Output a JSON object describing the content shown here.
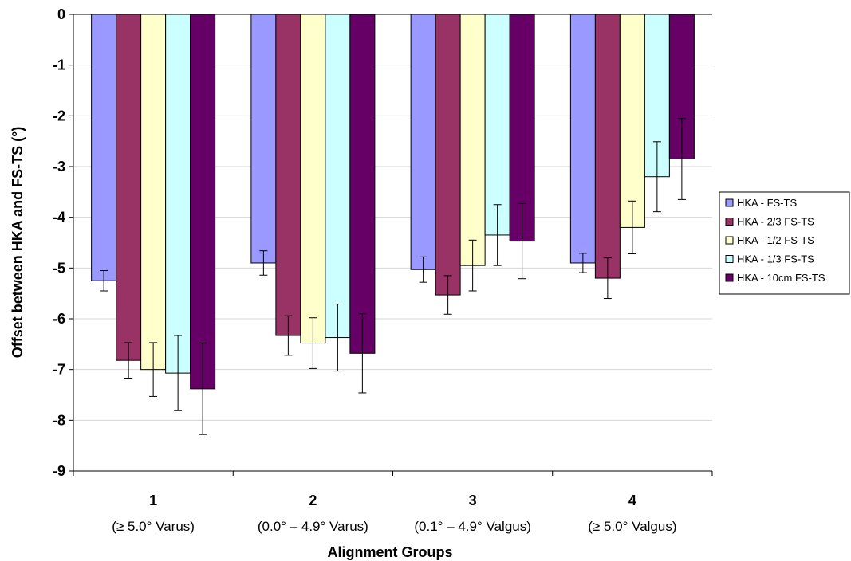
{
  "chart_data": {
    "type": "bar",
    "title": "",
    "xlabel": "Alignment Groups",
    "ylabel": "Offset between HKA and FS-TS (°)",
    "ylim": [
      -9,
      0
    ],
    "yticks": [
      "0",
      "-1",
      "-2",
      "-3",
      "-4",
      "-5",
      "-6",
      "-7",
      "-8",
      "-9"
    ],
    "grid": true,
    "legend_position": "right",
    "categories": [
      "1",
      "2",
      "3",
      "4"
    ],
    "category_sublabels": [
      "(≥ 5.0° Varus)",
      "(0.0° – 4.9° Varus)",
      "(0.1° – 4.9° Valgus)",
      "(≥ 5.0° Valgus)"
    ],
    "series": [
      {
        "name": "HKA - FS-TS",
        "color": "#9999ff",
        "values": [
          -5.25,
          -4.9,
          -5.03,
          -4.9
        ],
        "error": [
          0.2,
          0.24,
          0.25,
          0.19
        ]
      },
      {
        "name": "HKA - 2/3 FS-TS",
        "color": "#993366",
        "values": [
          -6.82,
          -6.33,
          -5.53,
          -5.2
        ],
        "error": [
          0.35,
          0.39,
          0.38,
          0.4
        ]
      },
      {
        "name": "HKA - 1/2 FS-TS",
        "color": "#ffffcc",
        "values": [
          -7.0,
          -6.48,
          -4.95,
          -4.2
        ],
        "error": [
          0.53,
          0.5,
          0.5,
          0.52
        ]
      },
      {
        "name": "HKA - 1/3 FS-TS",
        "color": "#ccffff",
        "values": [
          -7.07,
          -6.37,
          -4.35,
          -3.2
        ],
        "error": [
          0.74,
          0.66,
          0.6,
          0.69
        ]
      },
      {
        "name": "HKA - 10cm FS-TS",
        "color": "#660066",
        "values": [
          -7.38,
          -6.68,
          -4.47,
          -2.85
        ],
        "error": [
          0.9,
          0.78,
          0.74,
          0.8
        ]
      }
    ]
  }
}
